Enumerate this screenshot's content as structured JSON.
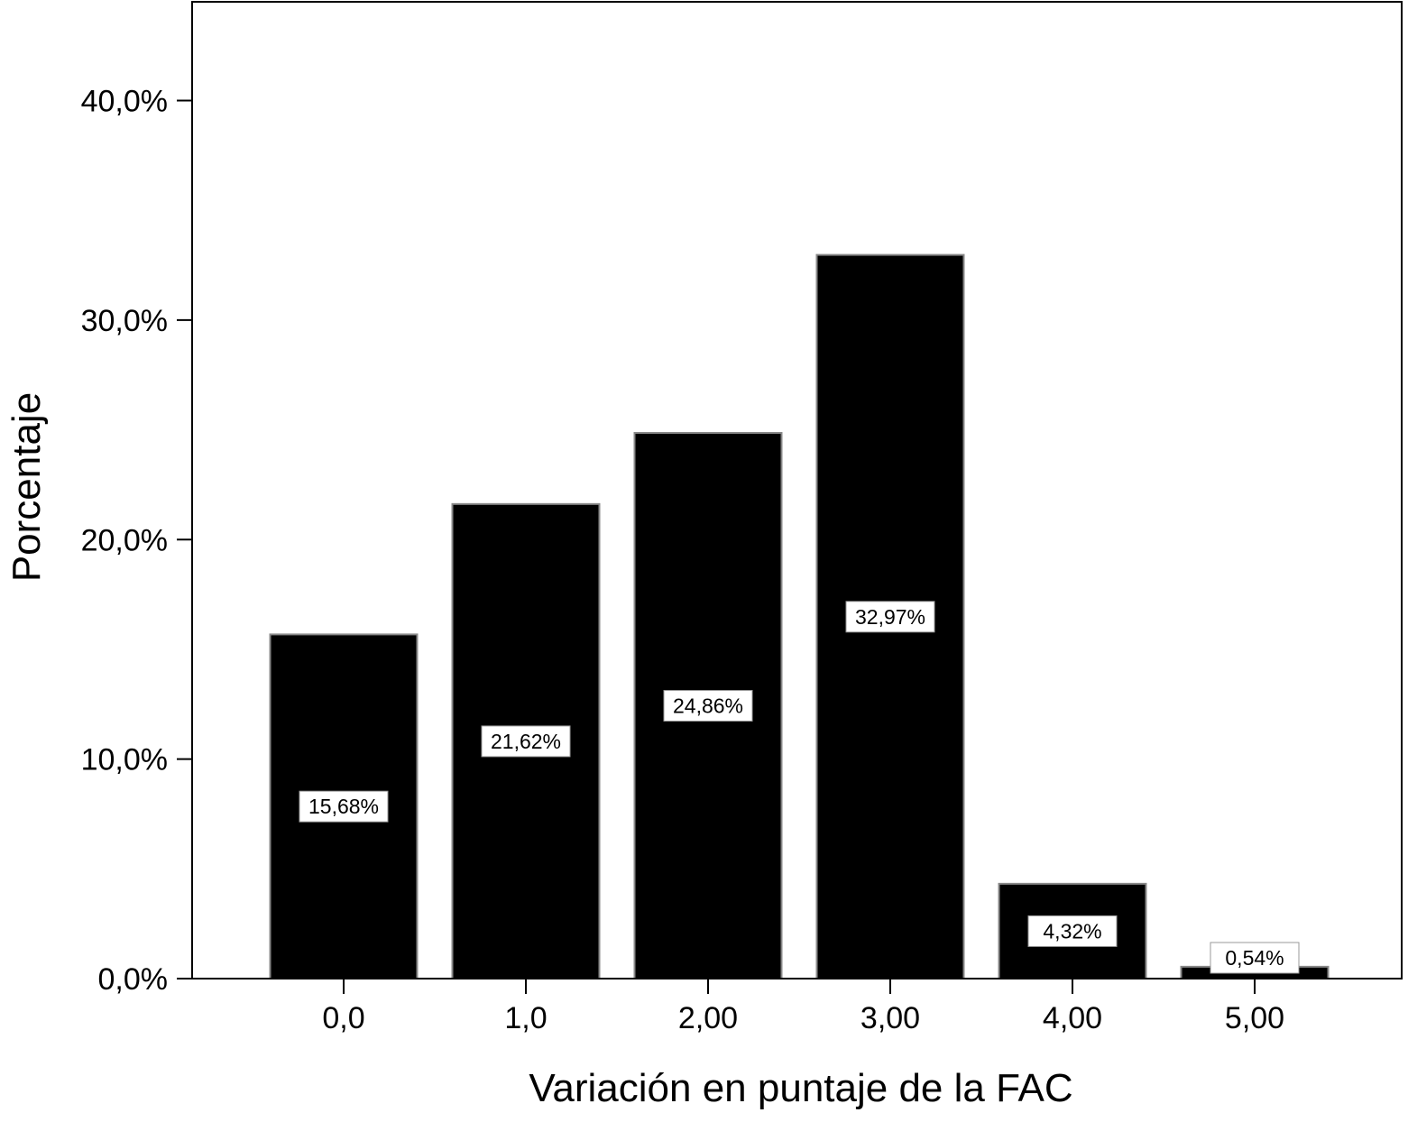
{
  "chart_data": {
    "type": "bar",
    "title": "",
    "xlabel": "Variación en puntaje de la FAC",
    "ylabel": "Porcentaje",
    "categories": [
      "0,0",
      "1,0",
      "2,00",
      "3,00",
      "4,00",
      "5,00"
    ],
    "values": [
      15.68,
      21.62,
      24.86,
      32.97,
      4.32,
      0.54
    ],
    "data_labels": [
      "15,68%",
      "21,62%",
      "24,86%",
      "32,97%",
      "4,32%",
      "0,54%"
    ],
    "ylim": [
      0,
      44.5
    ],
    "yticks": [
      0,
      10,
      20,
      30,
      40
    ],
    "ytick_labels": [
      "0,0%",
      "10,0%",
      "20,0%",
      "30,0%",
      "40,0%"
    ],
    "grid": false,
    "legend": "none",
    "bar_color": "#000000",
    "label_box_color": "#ffffff"
  }
}
